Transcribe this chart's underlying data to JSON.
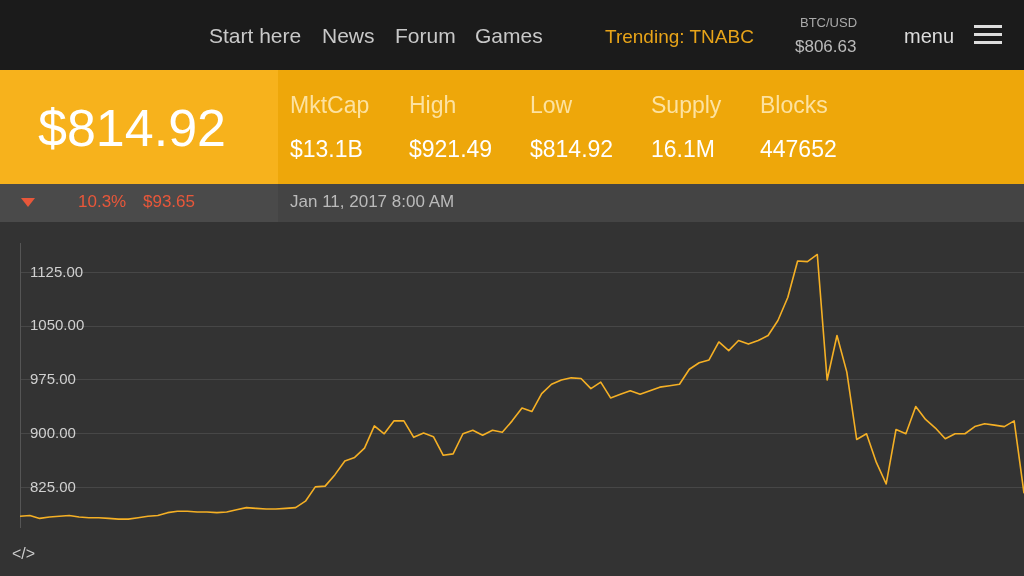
{
  "chart_data": {
    "type": "line",
    "categories": [
      null,
      null,
      null,
      null,
      null,
      null,
      null,
      null,
      null,
      null,
      null,
      null,
      null,
      null,
      null,
      null,
      null,
      null,
      null,
      null,
      null,
      null,
      null,
      null,
      null,
      null,
      null,
      null,
      null,
      null,
      null,
      null,
      null,
      null,
      null,
      null,
      null,
      null,
      null,
      null,
      null,
      null,
      null,
      null,
      null,
      null,
      null,
      null,
      null,
      null,
      null,
      null,
      null,
      null,
      null,
      null,
      null,
      null,
      null,
      null,
      null,
      null,
      null,
      null,
      null,
      null,
      null,
      null,
      null,
      null,
      null,
      null,
      null,
      null,
      null,
      null,
      null,
      null,
      null,
      null,
      null,
      null,
      null,
      null,
      null,
      null,
      null,
      null,
      null,
      null,
      null,
      null,
      null,
      null,
      null,
      null,
      null,
      null,
      null,
      null,
      null,
      null,
      null
    ],
    "series": [
      {
        "color": "#f5b025",
        "values": [
          785,
          786,
          782,
          784,
          785,
          786,
          784,
          783,
          783,
          782,
          781,
          781,
          783,
          785,
          786,
          790,
          792,
          792,
          791,
          791,
          790,
          791,
          794,
          797,
          796,
          795,
          795,
          796,
          797,
          806,
          826,
          827,
          843,
          862,
          867,
          880,
          911,
          900,
          918,
          918,
          895,
          901,
          896,
          870,
          872,
          900,
          905,
          898,
          905,
          902,
          918,
          936,
          931,
          956,
          969,
          975,
          978,
          977,
          963,
          972,
          950,
          955,
          960,
          955,
          960,
          965,
          967,
          969,
          990,
          999,
          1003,
          1028,
          1016,
          1030,
          1025,
          1030,
          1037,
          1058,
          1090,
          1141,
          1140,
          1150,
          975,
          1037,
          986,
          892,
          900,
          860,
          830,
          906,
          900,
          938,
          920,
          908,
          893,
          900,
          900,
          910,
          914,
          912,
          910,
          918,
          817
        ]
      }
    ],
    "ylim": [
      770,
      1166
    ],
    "yticks": [
      {
        "value": 825,
        "label": "825.00"
      },
      {
        "value": 900,
        "label": "900.00"
      },
      {
        "value": 975,
        "label": "975.00"
      },
      {
        "value": 1050,
        "label": "1050.00"
      },
      {
        "value": 1125,
        "label": "1125.00"
      }
    ],
    "grid": "y",
    "legend": false,
    "marker": "none",
    "line_style": "solid",
    "tick_labels": "y",
    "annotations": [
      "Start here",
      "News",
      "Forum",
      "Games",
      "Trending: TNABC",
      "BTC/USD",
      "$806.63",
      "menu",
      "$814.92",
      "MktCap",
      "$13.1B",
      "High",
      "$921.49",
      "Low",
      "$814.92",
      "Supply",
      "16.1M",
      "Blocks",
      "447652",
      "10.3%",
      "$93.65",
      "Jan 11, 2017 8:00 AM",
      "</>"
    ]
  }
}
